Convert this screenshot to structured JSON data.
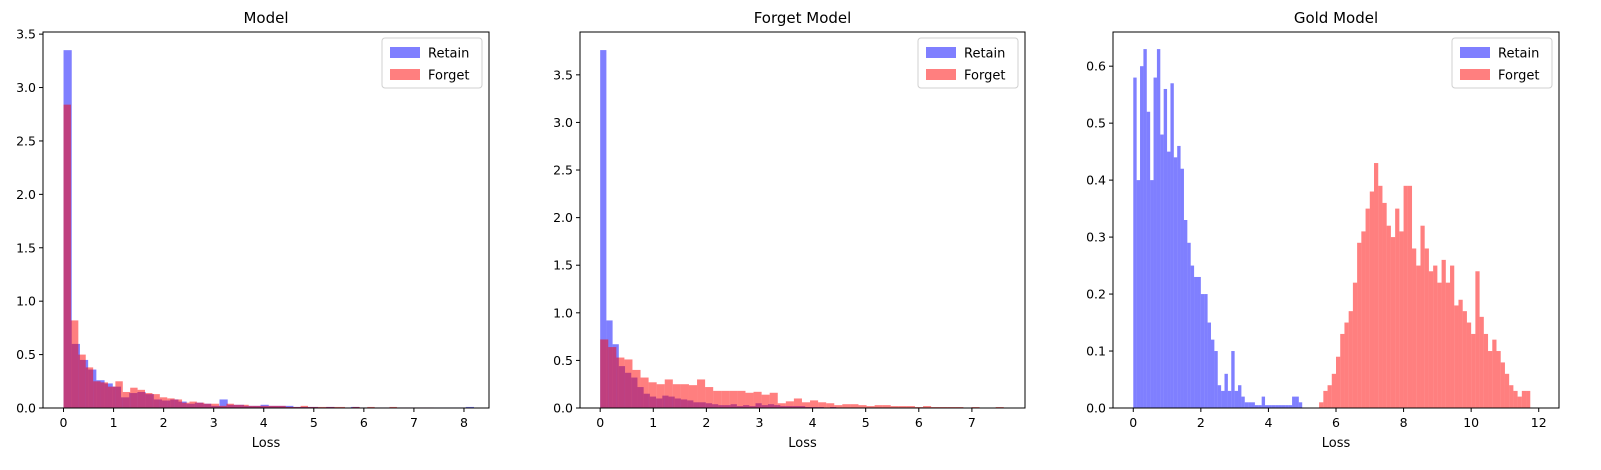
{
  "colors": {
    "retain": "#0000ff",
    "forget": "#ff0000",
    "bar_alpha": 0.5
  },
  "chart_data": [
    {
      "type": "bar",
      "title": "Model",
      "xlabel": "Loss",
      "ylabel": "",
      "xlim": [
        -0.41,
        8.5
      ],
      "ylim": [
        0,
        3.52
      ],
      "xticks": [
        0,
        1,
        2,
        3,
        4,
        5,
        6,
        7,
        8
      ],
      "yticks": [
        0.0,
        0.5,
        1.0,
        1.5,
        2.0,
        2.5,
        3.0,
        3.5
      ],
      "legend_position": "top-right",
      "series": [
        {
          "name": "Retain",
          "color": "#0000ff",
          "bin_start": 0,
          "bin_width": 0.164,
          "values": [
            3.35,
            0.6,
            0.45,
            0.36,
            0.26,
            0.23,
            0.2,
            0.1,
            0.14,
            0.15,
            0.13,
            0.08,
            0.07,
            0.08,
            0.06,
            0.04,
            0.05,
            0.04,
            0.02,
            0.08,
            0.03,
            0.03,
            0.02,
            0.02,
            0.03,
            0.02,
            0.02,
            0.02,
            0.01,
            0.01,
            0.01,
            0.005,
            0.01,
            0.005,
            0.005,
            0.01,
            0.005,
            0.005,
            0.005,
            0.005,
            0.005,
            0.005,
            0.005,
            0.005,
            0.005,
            0.005,
            0.005,
            0.005,
            0.005,
            0.01
          ]
        },
        {
          "name": "Forget",
          "color": "#ff0000",
          "bin_start": 0,
          "bin_width": 0.148,
          "values": [
            2.84,
            0.82,
            0.5,
            0.38,
            0.25,
            0.24,
            0.2,
            0.25,
            0.15,
            0.19,
            0.17,
            0.14,
            0.13,
            0.1,
            0.09,
            0.08,
            0.05,
            0.06,
            0.05,
            0.04,
            0.04,
            0.02,
            0.04,
            0.03,
            0.03,
            0.02,
            0.02,
            0.02,
            0.02,
            0.02,
            0.01,
            0.01,
            0.02,
            0.01,
            0.01,
            0.01,
            0.01,
            0.01,
            0.005,
            0.01,
            0.005,
            0.01,
            0.005,
            0.005,
            0.01,
            0.005,
            0.005,
            0.005,
            0.005,
            0.005
          ]
        }
      ]
    },
    {
      "type": "bar",
      "title": "Forget Model",
      "xlabel": "Loss",
      "ylabel": "",
      "xlim": [
        -0.38,
        8.0
      ],
      "ylim": [
        0,
        3.95
      ],
      "xticks": [
        0,
        1,
        2,
        3,
        4,
        5,
        6,
        7
      ],
      "yticks": [
        0.0,
        0.5,
        1.0,
        1.5,
        2.0,
        2.5,
        3.0,
        3.5
      ],
      "legend_position": "top-right",
      "series": [
        {
          "name": "Retain",
          "color": "#0000ff",
          "bin_start": 0,
          "bin_width": 0.117,
          "values": [
            3.76,
            0.92,
            0.67,
            0.44,
            0.37,
            0.32,
            0.22,
            0.15,
            0.12,
            0.1,
            0.13,
            0.12,
            0.1,
            0.09,
            0.08,
            0.06,
            0.06,
            0.05,
            0.04,
            0.03,
            0.03,
            0.04,
            0.02,
            0.03,
            0.02,
            0.05,
            0.03,
            0.04,
            0.03,
            0.02,
            0.02,
            0.02,
            0.02,
            0.01,
            0.01,
            0.01,
            0.005,
            0.01,
            0.005,
            0.005,
            0.005,
            0.005,
            0.005,
            0.005,
            0.005,
            0.005,
            0.005,
            0.005,
            0.005,
            0.005
          ]
        },
        {
          "name": "Forget",
          "color": "#ff0000",
          "bin_start": 0,
          "bin_width": 0.152,
          "values": [
            0.72,
            0.64,
            0.53,
            0.51,
            0.4,
            0.32,
            0.27,
            0.25,
            0.3,
            0.25,
            0.25,
            0.24,
            0.3,
            0.22,
            0.18,
            0.18,
            0.18,
            0.18,
            0.16,
            0.17,
            0.14,
            0.16,
            0.05,
            0.07,
            0.1,
            0.06,
            0.08,
            0.06,
            0.05,
            0.03,
            0.04,
            0.04,
            0.03,
            0.02,
            0.03,
            0.03,
            0.02,
            0.02,
            0.02,
            0.01,
            0.02,
            0.01,
            0.01,
            0.01,
            0.01,
            0.005,
            0.01,
            0.005,
            0.005,
            0.01
          ]
        }
      ]
    },
    {
      "type": "bar",
      "title": "Gold Model",
      "xlabel": "Loss",
      "ylabel": "",
      "xlim": [
        -0.6,
        12.6
      ],
      "ylim": [
        0,
        0.66
      ],
      "xticks": [
        0,
        2,
        4,
        6,
        8,
        10,
        12
      ],
      "yticks": [
        0.0,
        0.1,
        0.2,
        0.3,
        0.4,
        0.5,
        0.6
      ],
      "legend_position": "top-right",
      "series": [
        {
          "name": "Retain",
          "color": "#0000ff",
          "bin_start": 0,
          "bin_width": 0.1,
          "values": [
            0.58,
            0.4,
            0.6,
            0.63,
            0.52,
            0.4,
            0.58,
            0.63,
            0.48,
            0.56,
            0.45,
            0.57,
            0.44,
            0.46,
            0.42,
            0.33,
            0.29,
            0.25,
            0.23,
            0.23,
            0.2,
            0.2,
            0.15,
            0.12,
            0.1,
            0.04,
            0.03,
            0.06,
            0.03,
            0.1,
            0.03,
            0.04,
            0.02,
            0.01,
            0.01,
            0.01,
            0.005,
            0.005,
            0.02,
            0.005,
            0.005,
            0.005,
            0.005,
            0.005,
            0.005,
            0.005,
            0.005,
            0.02,
            0.02,
            0.01
          ]
        },
        {
          "name": "Forget",
          "color": "#ff0000",
          "bin_start": 5.5,
          "bin_width": 0.125,
          "values": [
            0.01,
            0.03,
            0.04,
            0.06,
            0.09,
            0.13,
            0.15,
            0.17,
            0.22,
            0.29,
            0.31,
            0.35,
            0.38,
            0.43,
            0.39,
            0.36,
            0.32,
            0.3,
            0.35,
            0.31,
            0.39,
            0.39,
            0.28,
            0.25,
            0.32,
            0.28,
            0.24,
            0.25,
            0.22,
            0.26,
            0.22,
            0.25,
            0.18,
            0.19,
            0.17,
            0.15,
            0.13,
            0.24,
            0.16,
            0.13,
            0.1,
            0.12,
            0.1,
            0.08,
            0.06,
            0.04,
            0.03,
            0.02,
            0.03,
            0.03
          ]
        }
      ]
    }
  ]
}
